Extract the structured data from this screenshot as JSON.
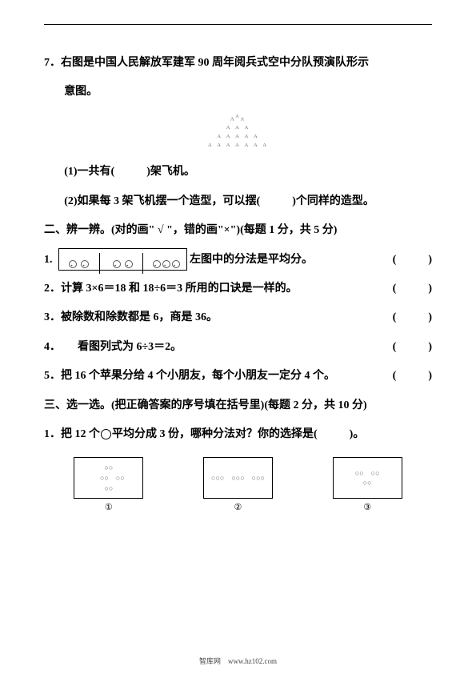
{
  "q7": {
    "stem": "7．右图是中国人民解放军建军 90 周年阅兵式空中分队预演队形示",
    "stem2": "意图。",
    "sub1_pre": "(1)一共有(",
    "sub1_post": ")架飞机。",
    "sub2_pre": "(2)如果每 3 架飞机摆一个造型，可以摆(",
    "sub2_post": ")个同样的造型。"
  },
  "section2": {
    "title": "二、辨一辨。(对的画\" √ \"，错的画\"×\")(每题 1 分，共 5 分)",
    "q1_post": "左图中的分法是平均分。",
    "q2": "2．计算 3×6＝18 和 18÷6＝3 所用的口诀是一样的。",
    "q3": "3．被除数和除数都是 6，商是 36。",
    "q4": "4．　　看图列式为 6÷3＝2。",
    "q5": "5．把 16 个苹果分给 4 个小朋友，每个小朋友一定分 4 个。"
  },
  "section3": {
    "title": "三、选一选。(把正确答案的序号填在括号里)(每题 2 分，共 10 分)",
    "q1_pre": "1．把 12 个",
    "q1_mid": "平均分成 3 份，哪种分法对？你的选择是(",
    "q1_post": ")。",
    "choice1": "①",
    "choice2": "②",
    "choice3": "③"
  },
  "paren_open": "(",
  "paren_close": ")",
  "footer": "智库网　www.hz102.com"
}
